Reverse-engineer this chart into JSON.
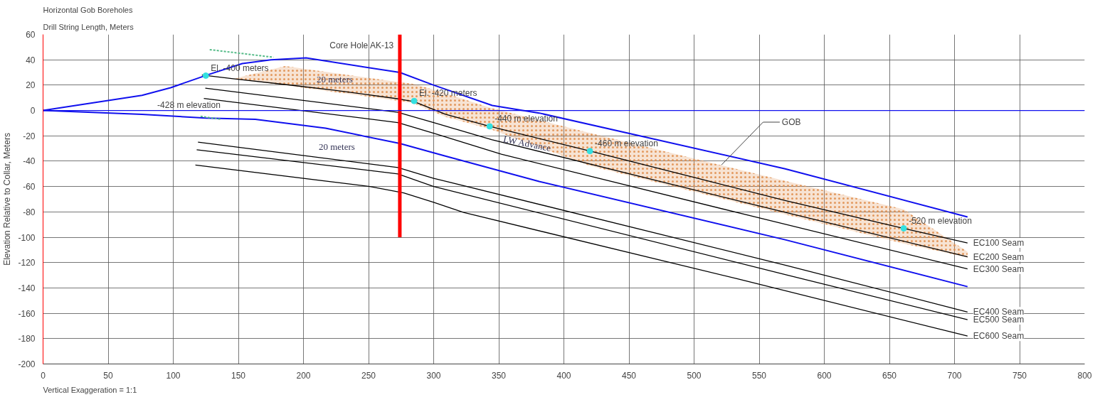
{
  "chart_data": {
    "type": "line",
    "title": "Horizontal Gob Boreholes",
    "subtitle": "Drill String Length, Meters",
    "ylabel": "Elevation Relative to Collar, Meters",
    "xlim": [
      0,
      800
    ],
    "ylim": [
      -200,
      60
    ],
    "xticks": [
      0,
      50,
      100,
      150,
      200,
      250,
      300,
      350,
      400,
      450,
      500,
      550,
      600,
      650,
      700,
      750,
      800
    ],
    "yticks": [
      -200,
      -180,
      -160,
      -140,
      -120,
      -100,
      -80,
      -60,
      -40,
      -20,
      0,
      20,
      40,
      60
    ],
    "grid": true,
    "series": [
      {
        "color": "#1010ee",
        "x": [
          0,
          76,
          98,
          126,
          153,
          175,
          202,
          274,
          300,
          345,
          381,
          570,
          710
        ],
        "values": [
          0,
          12,
          18,
          28,
          37,
          40,
          41.5,
          30,
          20,
          4,
          -2,
          -46,
          -84
        ]
      },
      {
        "color": "#1010ee",
        "x": [
          0,
          76,
          125,
          163,
          217,
          274,
          309,
          381,
          570,
          710
        ],
        "values": [
          0,
          -3,
          -6,
          -7,
          -14,
          -26,
          -36,
          -56,
          -102,
          -139
        ]
      },
      {
        "color": "#55bb88",
        "line_style": "dashed",
        "x": [
          128,
          177
        ],
        "values": [
          48,
          42
        ]
      },
      {
        "color": "#55bb88",
        "line_style": "dashed",
        "x": [
          121,
          137
        ],
        "values": [
          -4.6,
          -7
        ]
      },
      {
        "name": "EC100 Seam",
        "color": "#000000",
        "x": [
          122,
          146,
          186,
          224,
          274,
          285,
          309,
          343,
          420,
          570,
          661,
          710
        ],
        "values": [
          28,
          25,
          20.5,
          16,
          9,
          7,
          -3,
          -12.5,
          -32,
          -71,
          -93,
          -104.5
        ],
        "lower": [
          null,
          25,
          20,
          14.5,
          7.5,
          5.5,
          -5,
          -14.5,
          -43.7,
          -82,
          -105,
          -116
        ],
        "upper": [
          null,
          25,
          35,
          29.5,
          22.3,
          20.9,
          13.7,
          2.3,
          -17.7,
          -55.6,
          -78,
          -111.5
        ]
      },
      {
        "name": "EC200 Seam",
        "color": "#000000",
        "x": [
          124.6,
          272.5,
          300,
          344.5,
          543,
          710
        ],
        "values": [
          17.6,
          -1.4,
          -9.5,
          -23,
          -73.6,
          -115.4
        ]
      },
      {
        "name": "EC300 Seam",
        "color": "#000000",
        "x": [
          123.5,
          272.5,
          300,
          352,
          543,
          710
        ],
        "values": [
          9.5,
          -9.5,
          -18,
          -34.5,
          -83,
          -125
        ]
      },
      {
        "name": "EC400 Seam",
        "color": "#000000",
        "x": [
          119,
          272.5,
          300,
          570,
          710
        ],
        "values": [
          -25,
          -45,
          -53.5,
          -122,
          -159
        ]
      },
      {
        "name": "EC500 Seam",
        "color": "#000000",
        "x": [
          118,
          272.5,
          300,
          570,
          710
        ],
        "values": [
          -31,
          -50,
          -60,
          -129.5,
          -165
        ]
      },
      {
        "name": "EC600 Seam",
        "color": "#000000",
        "x": [
          117,
          251,
          277,
          300,
          323,
          534,
          710
        ],
        "values": [
          -43,
          -60,
          -65,
          -72.5,
          -80.5,
          -133,
          -178
        ]
      },
      {
        "name": "Core Hole AK-13",
        "color": "#ff0000",
        "x": [
          274,
          274
        ],
        "values": [
          60,
          -100
        ]
      },
      {
        "type": "scatter",
        "marker": "circle",
        "color": "#33e0e0",
        "x": [
          125,
          285,
          343,
          420,
          661
        ],
        "values": [
          27.5,
          7.5,
          -12.5,
          -32,
          -93
        ]
      }
    ],
    "ref_lines": [
      {
        "axis": "y",
        "value": 0,
        "label": "-428 m elevation",
        "color": "#1010ee"
      }
    ],
    "annotations": [
      {
        "text": "El. -400 meters",
        "x": 125,
        "y": 27.5
      },
      {
        "text": "El. -420 meters",
        "x": 285,
        "y": 7.5
      },
      {
        "text": "-440 m elevation",
        "x": 343,
        "y": -12.5
      },
      {
        "text": "-460 m elevation",
        "x": 420,
        "y": -32
      },
      {
        "text": "-520 m elevation",
        "x": 661,
        "y": -93
      },
      {
        "text": "GOB",
        "x": 521,
        "y": -43
      },
      "20 meters",
      "20 meters",
      "LW Advance",
      "Vertical Exaggeration = 1:1"
    ]
  }
}
